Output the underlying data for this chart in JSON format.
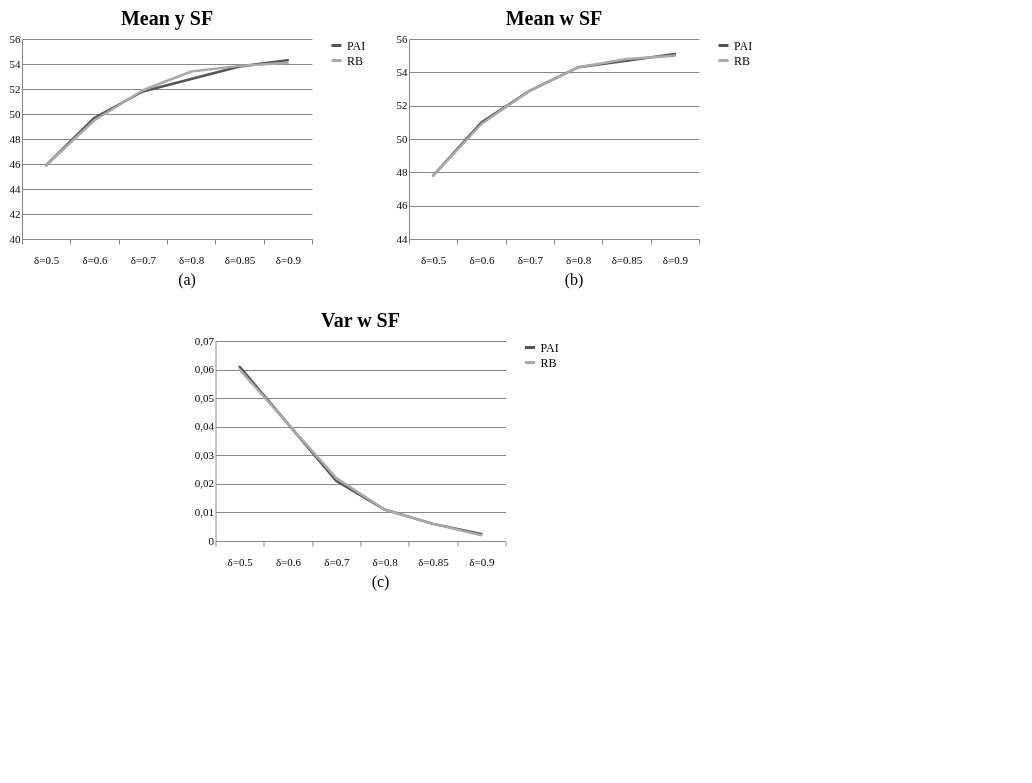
{
  "chart_data": [
    {
      "type": "line",
      "title": "Mean y SF",
      "categories": [
        "δ=0.5",
        "δ=0.6",
        "δ=0.7",
        "δ=0.8",
        "δ=0.85",
        "δ=0.9"
      ],
      "series": [
        {
          "name": "PAI",
          "color": "#555555",
          "values": [
            45.9,
            49.7,
            51.8,
            52.8,
            53.8,
            54.3
          ]
        },
        {
          "name": "RB",
          "color": "#aaaaaa",
          "values": [
            45.9,
            49.5,
            51.9,
            53.4,
            53.85,
            54.1
          ]
        }
      ],
      "ylim": [
        40,
        56
      ],
      "yticks": [
        40,
        42,
        44,
        46,
        48,
        50,
        52,
        54,
        56
      ],
      "grid": "y",
      "legend": "right",
      "annotations": [
        "(a)"
      ]
    },
    {
      "type": "line",
      "title": "Mean w SF",
      "categories": [
        "δ=0.5",
        "δ=0.6",
        "δ=0.7",
        "δ=0.8",
        "δ=0.85",
        "δ=0.9"
      ],
      "series": [
        {
          "name": "PAI",
          "color": "#555555",
          "values": [
            47.8,
            51.0,
            52.9,
            54.3,
            54.7,
            55.1
          ]
        },
        {
          "name": "RB",
          "color": "#aaaaaa",
          "values": [
            47.8,
            50.9,
            52.9,
            54.3,
            54.8,
            55.0
          ]
        }
      ],
      "ylim": [
        44,
        56
      ],
      "yticks": [
        44,
        46,
        48,
        50,
        52,
        54,
        56
      ],
      "grid": "y",
      "legend": "right",
      "annotations": [
        "(b)"
      ]
    },
    {
      "type": "line",
      "title": "Var w SF",
      "categories": [
        "δ=0.5",
        "δ=0.6",
        "δ=0.7",
        "δ=0.8",
        "δ=0.85",
        "δ=0.9"
      ],
      "series": [
        {
          "name": "PAI",
          "color": "#555555",
          "values": [
            0.061,
            0.041,
            0.021,
            0.011,
            0.006,
            0.0025
          ]
        },
        {
          "name": "RB",
          "color": "#aaaaaa",
          "values": [
            0.06,
            0.041,
            0.022,
            0.011,
            0.006,
            0.002
          ]
        }
      ],
      "ylim": [
        0,
        0.07
      ],
      "yticks": [
        0,
        {
          "value": 0.01,
          "label": "0,01"
        },
        {
          "value": 0.02,
          "label": "0,02"
        },
        {
          "value": 0.03,
          "label": "0,03"
        },
        {
          "value": 0.04,
          "label": "0,04"
        },
        {
          "value": 0.05,
          "label": "0,05"
        },
        {
          "value": 0.06,
          "label": "0,06"
        },
        {
          "value": 0.07,
          "label": "0,07"
        }
      ],
      "grid": "y",
      "legend": "right",
      "annotations": [
        "(c)"
      ]
    }
  ]
}
